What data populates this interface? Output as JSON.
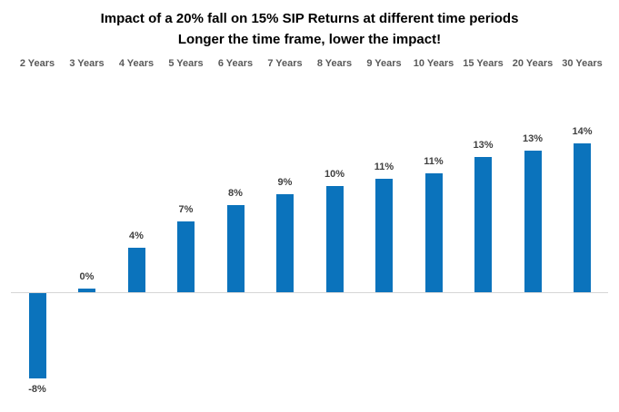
{
  "chart_data": {
    "type": "bar",
    "title": "Impact of a 20% fall on 15% SIP Returns at different time periods",
    "subtitle": "Longer the time frame, lower the impact!",
    "categories": [
      "2 Years",
      "3 Years",
      "4 Years",
      "5 Years",
      "6 Years",
      "7 Years",
      "8 Years",
      "9 Years",
      "10 Years",
      "15 Years",
      "20 Years",
      "30 Years"
    ],
    "values": [
      -8,
      0,
      4,
      7,
      8,
      9,
      10,
      11,
      11,
      13,
      13,
      14
    ],
    "values_precise": [
      -8.0,
      0.3,
      4.2,
      6.7,
      8.2,
      9.2,
      10.0,
      10.7,
      11.2,
      12.7,
      13.3,
      14.0
    ],
    "labels": [
      "-8%",
      "0%",
      "4%",
      "7%",
      "8%",
      "9%",
      "10%",
      "11%",
      "11%",
      "13%",
      "13%",
      "14%"
    ],
    "xlabel": "",
    "ylabel": "",
    "ylim": [
      -10,
      16
    ],
    "grid": false,
    "legend": false,
    "data_labels": true,
    "category_axis_position": "top",
    "colors": {
      "bar": "#0B73BC",
      "data_label": "#404040",
      "category_label": "#595959",
      "axis_line": "#D6D6D6",
      "title": "#000000",
      "background": "#FFFFFF"
    }
  }
}
